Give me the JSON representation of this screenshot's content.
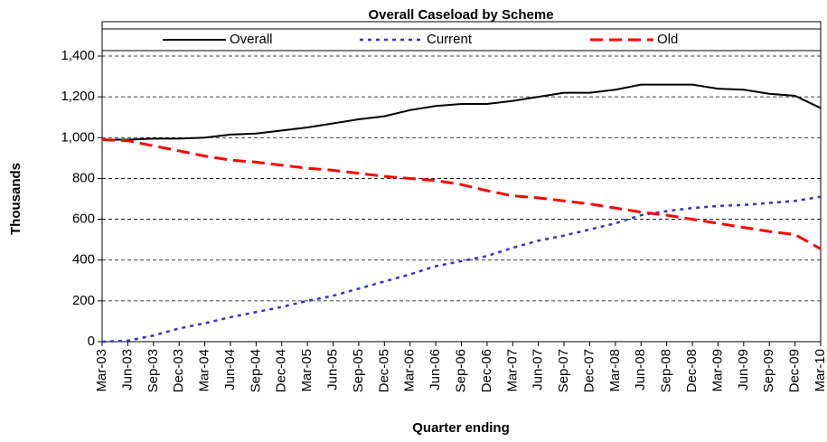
{
  "chart_data": {
    "type": "line",
    "title": "Overall Caseload by Scheme",
    "x_label": "Quarter ending",
    "y_label": "Thousands",
    "categories": [
      "Mar-03",
      "Jun-03",
      "Sep-03",
      "Dec-03",
      "Mar-04",
      "Jun-04",
      "Sep-04",
      "Dec-04",
      "Mar-05",
      "Jun-05",
      "Sep-05",
      "Dec-05",
      "Mar-06",
      "Jun-06",
      "Sep-06",
      "Dec-06",
      "Mar-07",
      "Jun-07",
      "Sep-07",
      "Dec-07",
      "Mar-08",
      "Jun-08",
      "Sep-08",
      "Dec-08",
      "Mar-09",
      "Jun-09",
      "Sep-09",
      "Dec-09",
      "Mar-10"
    ],
    "series": [
      {
        "name": "Overall",
        "color": "#000000",
        "style": "solid",
        "values": [
          990,
          990,
          995,
          995,
          1000,
          1015,
          1020,
          1035,
          1050,
          1070,
          1090,
          1105,
          1135,
          1155,
          1165,
          1165,
          1180,
          1200,
          1220,
          1220,
          1235,
          1260,
          1260,
          1260,
          1240,
          1235,
          1215,
          1205,
          1145
        ]
      },
      {
        "name": "Current",
        "color": "#3333cc",
        "style": "dotted",
        "values": [
          0,
          5,
          30,
          65,
          90,
          120,
          145,
          170,
          200,
          225,
          260,
          295,
          330,
          370,
          395,
          420,
          460,
          495,
          520,
          550,
          580,
          620,
          640,
          655,
          665,
          670,
          680,
          690,
          710
        ]
      },
      {
        "name": "Old",
        "color": "#ff0000",
        "style": "dashed",
        "values": [
          990,
          985,
          960,
          935,
          910,
          890,
          880,
          865,
          850,
          840,
          825,
          810,
          800,
          790,
          770,
          740,
          715,
          705,
          690,
          675,
          655,
          635,
          620,
          600,
          580,
          560,
          540,
          525,
          455
        ]
      }
    ],
    "ylim": [
      0,
      1400
    ],
    "yticks": [
      0,
      200,
      400,
      600,
      800,
      {
        "value": 1000,
        "label": "1,000"
      },
      {
        "value": 1200,
        "label": "1,200"
      },
      {
        "value": 1400,
        "label": "1,400"
      }
    ],
    "grid": true,
    "legend": "top"
  }
}
